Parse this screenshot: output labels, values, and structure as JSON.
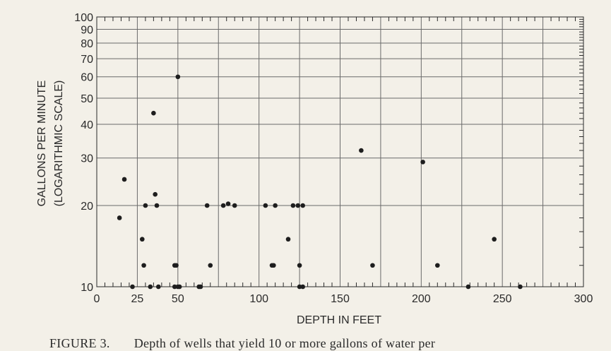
{
  "chart_data": {
    "type": "scatter",
    "title": "",
    "xlabel": "DEPTH IN FEET",
    "ylabel": "GALLONS PER MINUTE",
    "ylabel_sub": "(LOGARITHMIC SCALE)",
    "xlim": [
      0,
      300
    ],
    "ylim": [
      10,
      100
    ],
    "y_scale": "log",
    "grid": true,
    "x_ticks": [
      0,
      25,
      50,
      75,
      100,
      125,
      150,
      175,
      200,
      225,
      250,
      275,
      300
    ],
    "x_tick_labels": [
      "0",
      "25",
      "50",
      "100",
      "150",
      "200",
      "250",
      "300"
    ],
    "x_tick_label_values": [
      0,
      25,
      50,
      100,
      150,
      200,
      250,
      300
    ],
    "y_ticks": [
      10,
      20,
      30,
      40,
      50,
      60,
      70,
      80,
      90,
      100
    ],
    "y_tick_labels": [
      "10",
      "20",
      "30",
      "40",
      "50",
      "60",
      "70",
      "80",
      "90",
      "100"
    ],
    "series": [
      {
        "points": [
          [
            14,
            18
          ],
          [
            17,
            25
          ],
          [
            22,
            10
          ],
          [
            28,
            15
          ],
          [
            29,
            12
          ],
          [
            30,
            20
          ],
          [
            33,
            10
          ],
          [
            35,
            44
          ],
          [
            36,
            22
          ],
          [
            37,
            20
          ],
          [
            38,
            10
          ],
          [
            48,
            12
          ],
          [
            48,
            10
          ],
          [
            49,
            12
          ],
          [
            50,
            60
          ],
          [
            50,
            10
          ],
          [
            51,
            10
          ],
          [
            63,
            10
          ],
          [
            64,
            10
          ],
          [
            68,
            20
          ],
          [
            70,
            12
          ],
          [
            78,
            20
          ],
          [
            81,
            20.3
          ],
          [
            85,
            20
          ],
          [
            104,
            20
          ],
          [
            108,
            12
          ],
          [
            109,
            12
          ],
          [
            110,
            20
          ],
          [
            118,
            15
          ],
          [
            121,
            20
          ],
          [
            124,
            20
          ],
          [
            125,
            12
          ],
          [
            125,
            10
          ],
          [
            127,
            10
          ],
          [
            127,
            20
          ],
          [
            163,
            32
          ],
          [
            170,
            12
          ],
          [
            201,
            29
          ],
          [
            210,
            12
          ],
          [
            229,
            10
          ],
          [
            245,
            15
          ],
          [
            261,
            10
          ]
        ]
      }
    ]
  },
  "caption": {
    "label": "FIGURE 3.",
    "text": "Depth of wells that yield 10 or more gallons of water per"
  },
  "colors": {
    "paper": "#f3f0e8",
    "ink": "#2a2a2a",
    "grid": "#6a6a6a",
    "point": "#1e1e1e"
  }
}
